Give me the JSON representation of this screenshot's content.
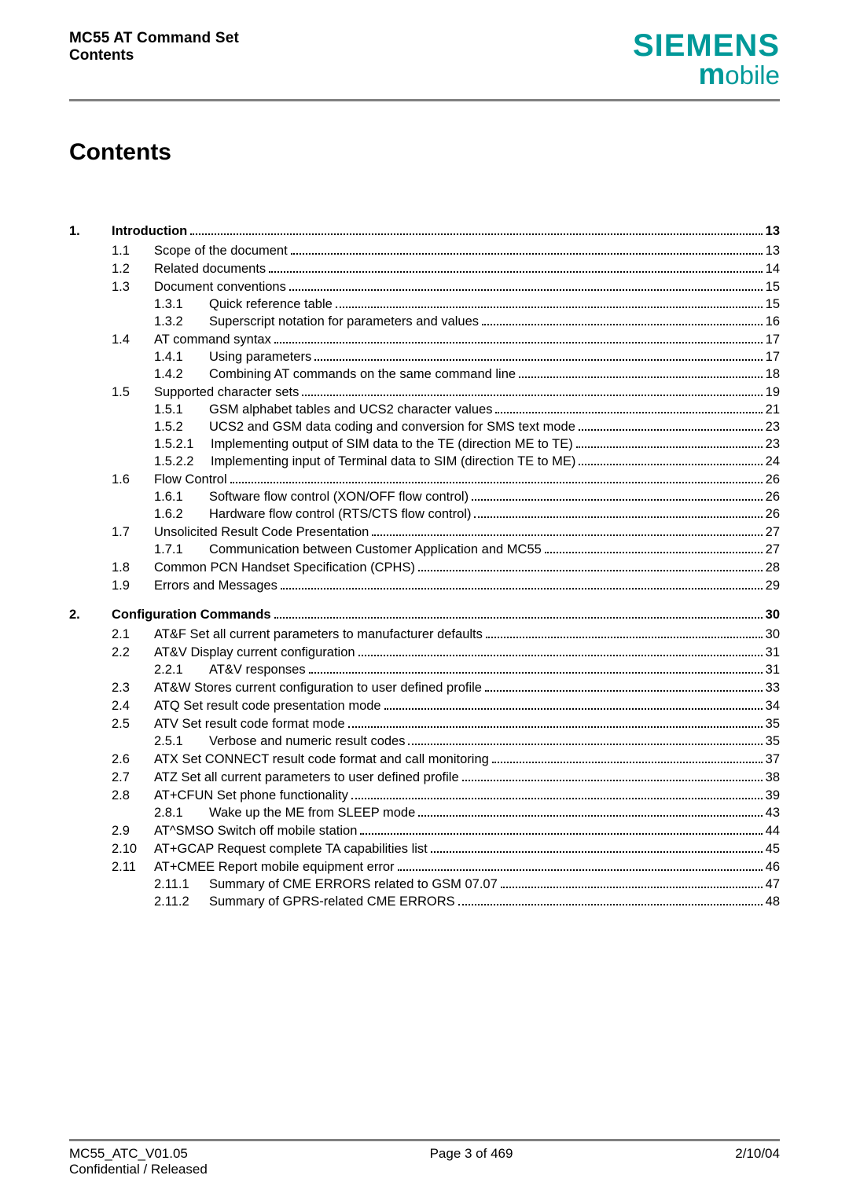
{
  "header": {
    "left_line1": "MC55 AT Command Set",
    "left_line2": "Contents",
    "logo_top": "SIEMENS",
    "logo_bottom_m": "m",
    "logo_bottom_rest": "obile",
    "brand_color": "#009999"
  },
  "title": "Contents",
  "toc": [
    {
      "level": 1,
      "num": "1.",
      "label": "Introduction",
      "page": "13"
    },
    {
      "level": 2,
      "num": "1.1",
      "label": "Scope of the document",
      "page": "13"
    },
    {
      "level": 2,
      "num": "1.2",
      "label": "Related documents",
      "page": "14"
    },
    {
      "level": 2,
      "num": "1.3",
      "label": "Document conventions",
      "page": "15"
    },
    {
      "level": 3,
      "num": "1.3.1",
      "label": "Quick reference table",
      "page": "15"
    },
    {
      "level": 3,
      "num": "1.3.2",
      "label": "Superscript notation for parameters and values",
      "page": "16"
    },
    {
      "level": 2,
      "num": "1.4",
      "label": "AT command syntax",
      "page": "17"
    },
    {
      "level": 3,
      "num": "1.4.1",
      "label": "Using parameters",
      "page": "17"
    },
    {
      "level": 3,
      "num": "1.4.2",
      "label": "Combining AT commands on the same command line",
      "page": "18"
    },
    {
      "level": 2,
      "num": "1.5",
      "label": "Supported character sets",
      "page": "19"
    },
    {
      "level": 3,
      "num": "1.5.1",
      "label": "GSM alphabet tables and UCS2 character values",
      "page": "21"
    },
    {
      "level": 3,
      "num": "1.5.2",
      "label": "UCS2 and GSM data coding and conversion for SMS text mode",
      "page": "23"
    },
    {
      "level": 4,
      "num": "1.5.2.1",
      "label": "Implementing output of SIM data to the TE (direction ME to TE)",
      "page": "23"
    },
    {
      "level": 4,
      "num": "1.5.2.2",
      "label": "Implementing input of Terminal data to SIM (direction TE to ME)",
      "page": "24"
    },
    {
      "level": 2,
      "num": "1.6",
      "label": "Flow Control",
      "page": "26"
    },
    {
      "level": 3,
      "num": "1.6.1",
      "label": "Software flow control (XON/OFF flow control)",
      "page": "26"
    },
    {
      "level": 3,
      "num": "1.6.2",
      "label": "Hardware flow control (RTS/CTS flow control)",
      "page": "26"
    },
    {
      "level": 2,
      "num": "1.7",
      "label": "Unsolicited Result Code Presentation",
      "page": "27"
    },
    {
      "level": 3,
      "num": "1.7.1",
      "label": "Communication between Customer Application and MC55",
      "page": "27"
    },
    {
      "level": 2,
      "num": "1.8",
      "label": "Common PCN Handset Specification (CPHS)",
      "page": "28"
    },
    {
      "level": 2,
      "num": "1.9",
      "label": "Errors and Messages",
      "page": "29"
    },
    {
      "level": 1,
      "num": "2.",
      "label": "Configuration Commands",
      "page": "30"
    },
    {
      "level": 2,
      "num": "2.1",
      "label": "AT&F   Set all current parameters to manufacturer defaults",
      "page": "30"
    },
    {
      "level": 2,
      "num": "2.2",
      "label": "AT&V   Display current configuration",
      "page": "31"
    },
    {
      "level": 3,
      "num": "2.2.1",
      "label": "AT&V responses",
      "page": "31"
    },
    {
      "level": 2,
      "num": "2.3",
      "label": "AT&W   Stores current configuration to user defined profile",
      "page": "33"
    },
    {
      "level": 2,
      "num": "2.4",
      "label": "ATQ   Set result code presentation mode",
      "page": "34"
    },
    {
      "level": 2,
      "num": "2.5",
      "label": "ATV   Set result code format mode",
      "page": "35"
    },
    {
      "level": 3,
      "num": "2.5.1",
      "label": "Verbose and numeric result codes",
      "page": "35"
    },
    {
      "level": 2,
      "num": "2.6",
      "label": "ATX   Set CONNECT result code format and call monitoring",
      "page": "37"
    },
    {
      "level": 2,
      "num": "2.7",
      "label": "ATZ   Set all current parameters to user defined profile",
      "page": "38"
    },
    {
      "level": 2,
      "num": "2.8",
      "label": "AT+CFUN   Set phone functionality",
      "page": "39"
    },
    {
      "level": 3,
      "num": "2.8.1",
      "label": "Wake up the ME from SLEEP mode",
      "page": "43"
    },
    {
      "level": 2,
      "num": "2.9",
      "label": "AT^SMSO   Switch off mobile station",
      "page": "44"
    },
    {
      "level": 2,
      "num": "2.10",
      "label": "AT+GCAP   Request complete TA capabilities list",
      "page": "45"
    },
    {
      "level": 2,
      "num": "2.11",
      "label": "AT+CMEE   Report mobile equipment error",
      "page": "46"
    },
    {
      "level": 3,
      "num": "2.11.1",
      "label": "Summary of CME ERRORS related to GSM 07.07",
      "page": "47"
    },
    {
      "level": 3,
      "num": "2.11.2",
      "label": "Summary of GPRS-related CME ERRORS",
      "page": "48"
    }
  ],
  "footer": {
    "left_line1": "MC55_ATC_V01.05",
    "left_line2": "Confidential / Released",
    "center": "Page 3 of 469",
    "right": "2/10/04"
  }
}
